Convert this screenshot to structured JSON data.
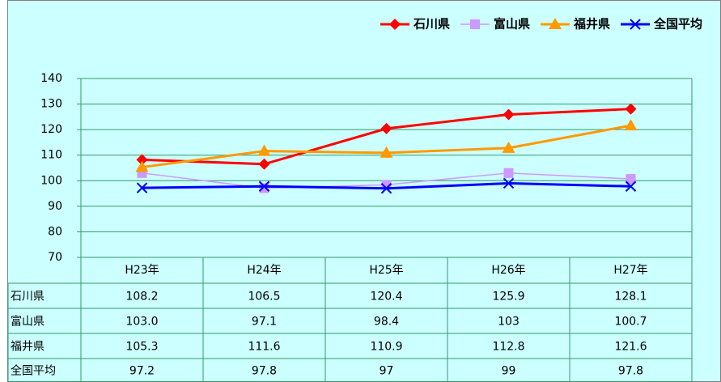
{
  "chart_data": {
    "type": "line",
    "categories": [
      "H23年",
      "H24年",
      "H25年",
      "H26年",
      "H27年"
    ],
    "series": [
      {
        "name": "石川県",
        "color": "#ff0000",
        "marker": "diamond",
        "values": [
          108.2,
          106.5,
          120.4,
          125.9,
          128.1
        ],
        "value_labels": [
          "108.2",
          "106.5",
          "120.4",
          "125.9",
          "128.1"
        ]
      },
      {
        "name": "富山県",
        "color": "#cc99ff",
        "marker": "square",
        "values": [
          103.0,
          97.1,
          98.4,
          103,
          100.7
        ],
        "value_labels": [
          "103.0",
          "97.1",
          "98.4",
          "103",
          "100.7"
        ]
      },
      {
        "name": "福井県",
        "color": "#ff9900",
        "marker": "triangle",
        "values": [
          105.3,
          111.6,
          110.9,
          112.8,
          121.6
        ],
        "value_labels": [
          "105.3",
          "111.6",
          "110.9",
          "112.8",
          "121.6"
        ]
      },
      {
        "name": "全国平均",
        "color": "#0000ff",
        "marker": "x",
        "values": [
          97.2,
          97.8,
          97,
          99,
          97.8
        ],
        "value_labels": [
          "97.2",
          "97.8",
          "97",
          "99",
          "97.8"
        ]
      }
    ],
    "ylim": [
      70,
      140
    ],
    "yticks": [
      70,
      80,
      90,
      100,
      110,
      120,
      130,
      140
    ],
    "grid": true,
    "legend": "top-right"
  }
}
